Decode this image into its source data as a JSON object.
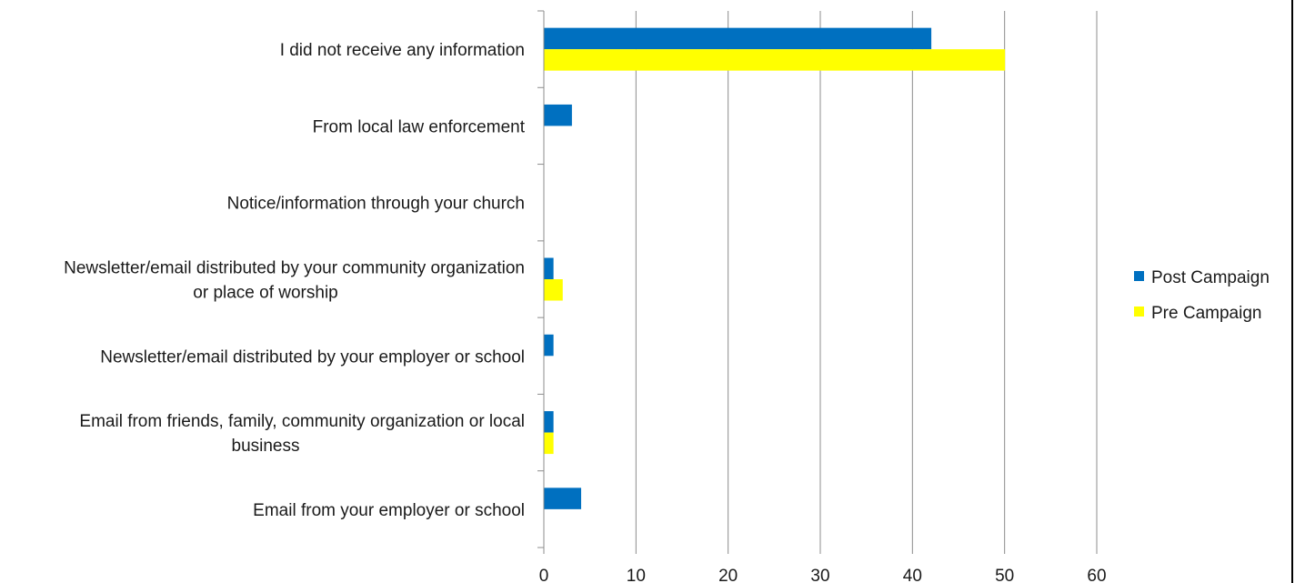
{
  "chart_data": {
    "type": "bar",
    "orientation": "horizontal",
    "categories": [
      "I did not receive any information",
      "From local law enforcement",
      "Notice/information through your church",
      "Newsletter/email distributed by your community organization or place of worship",
      "Newsletter/email distributed by your employer or school",
      "Email from friends, family, community organization or local business",
      "Email from your employer or school"
    ],
    "category_lines": [
      [
        "I did not receive any information"
      ],
      [
        "From local law enforcement"
      ],
      [
        "Notice/information through your church"
      ],
      [
        "Newsletter/email distributed by your community organization",
        "or place of worship"
      ],
      [
        "Newsletter/email distributed by your employer or school"
      ],
      [
        "Email from friends, family, community organization or local",
        "business"
      ],
      [
        "Email from your employer or school"
      ]
    ],
    "series": [
      {
        "name": "Post Campaign",
        "color": "#0070C0",
        "values": [
          42,
          3,
          0,
          1,
          1,
          1,
          4
        ]
      },
      {
        "name": "Pre Campaign",
        "color": "#FFFF00",
        "values": [
          50,
          0,
          0,
          2,
          0,
          1,
          0
        ]
      }
    ],
    "xlim": [
      0,
      60
    ],
    "xticks": [
      0,
      10,
      20,
      30,
      40,
      50,
      60
    ],
    "grid": "vertical",
    "legend": "right",
    "title": "",
    "xlabel": "",
    "ylabel": ""
  }
}
